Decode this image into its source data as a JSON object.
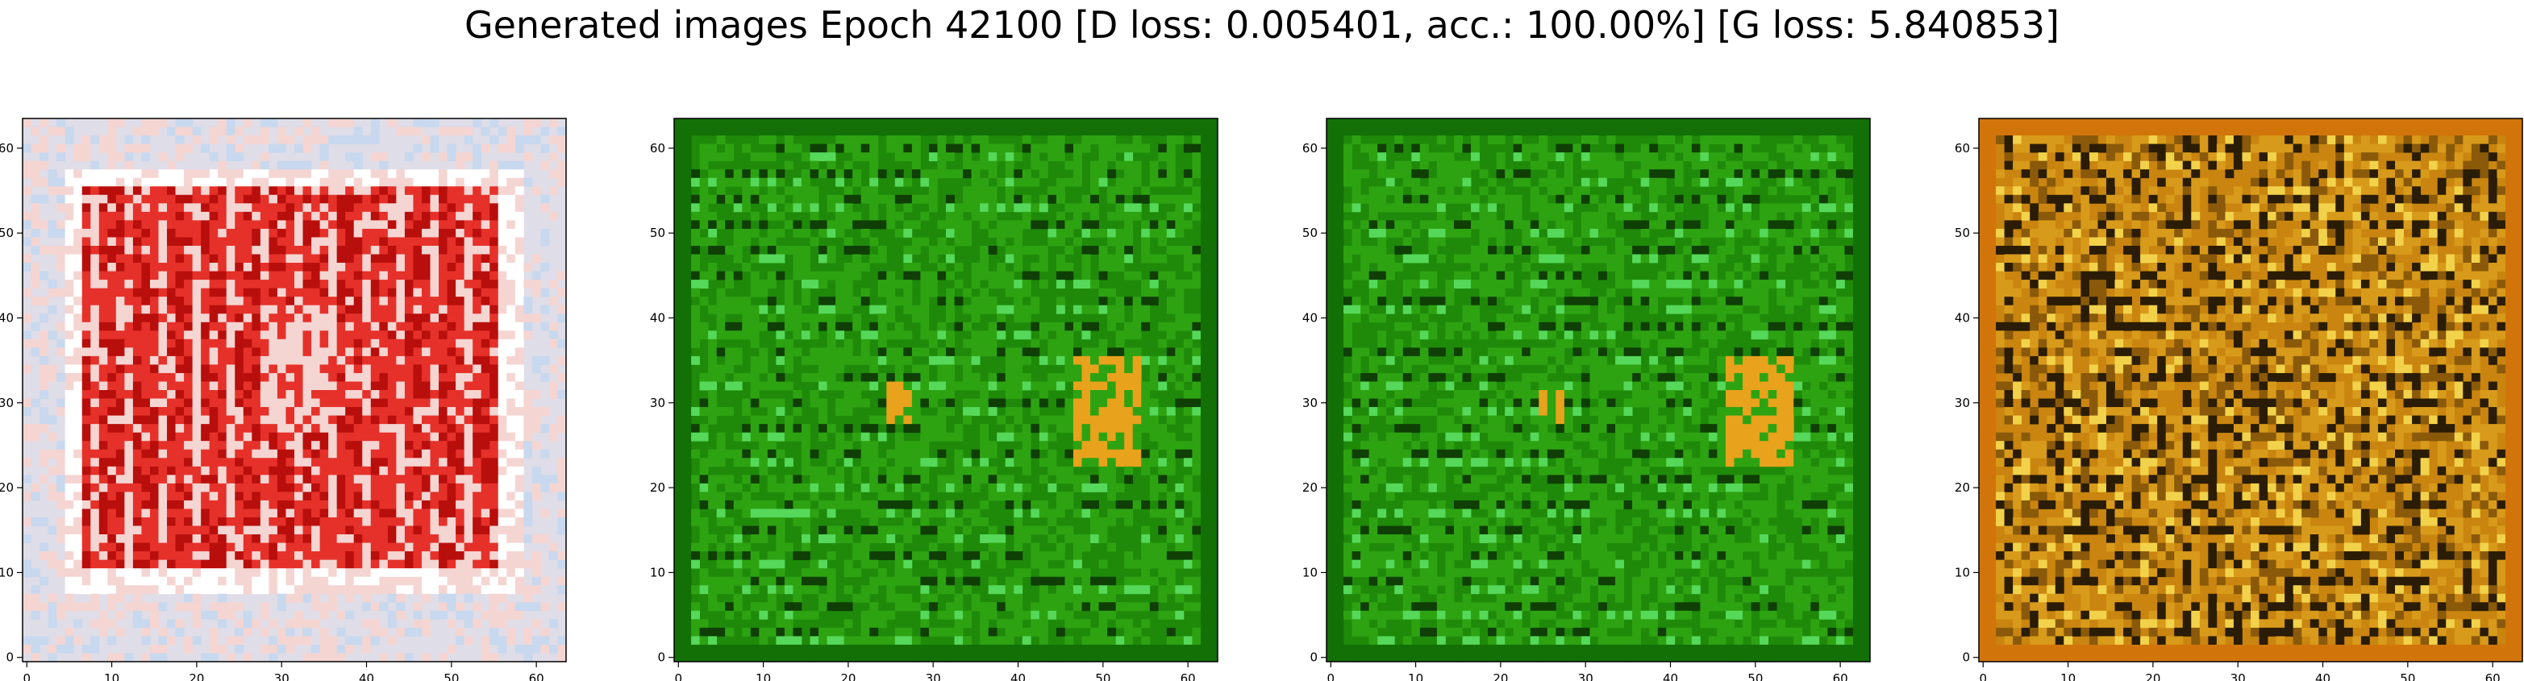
{
  "figure": {
    "title": "Generated images Epoch 42100 [D loss: 0.005401, acc.: 100.00%] [G loss: 5.840853]"
  },
  "chart_data": [
    {
      "type": "heatmap",
      "title": "",
      "xlabel": "",
      "ylabel": "",
      "x_ticks": [
        "0",
        "10",
        "20",
        "30",
        "40",
        "50",
        "60"
      ],
      "y_ticks": [
        "0",
        "10",
        "20",
        "30",
        "40",
        "50",
        "60"
      ],
      "xlim": [
        -0.5,
        63.5
      ],
      "ylim": [
        63.5,
        -0.5
      ],
      "grid": false,
      "palette": {
        "bg": "#dfdde8",
        "frame": "#ffffff",
        "main": "#e5312a",
        "dark": "#b80f0c",
        "light": "#f4d5d2",
        "accent": "#c8d8ee"
      }
    },
    {
      "type": "heatmap",
      "title": "",
      "xlabel": "",
      "ylabel": "",
      "x_ticks": [
        "0",
        "10",
        "20",
        "30",
        "40",
        "50",
        "60"
      ],
      "y_ticks": [
        "0",
        "10",
        "20",
        "30",
        "40",
        "50",
        "60"
      ],
      "xlim": [
        -0.5,
        63.5
      ],
      "ylim": [
        63.5,
        -0.5
      ],
      "grid": false,
      "palette": {
        "bg": "#1f8a0a",
        "frame": "#137006",
        "main": "#2ea312",
        "dark": "#0f3f05",
        "light": "#56d85a",
        "accent": "#e8a21c"
      }
    },
    {
      "type": "heatmap",
      "title": "",
      "xlabel": "",
      "ylabel": "",
      "x_ticks": [
        "0",
        "10",
        "20",
        "30",
        "40",
        "50",
        "60"
      ],
      "y_ticks": [
        "0",
        "10",
        "20",
        "30",
        "40",
        "50",
        "60"
      ],
      "xlim": [
        -0.5,
        63.5
      ],
      "ylim": [
        63.5,
        -0.5
      ],
      "grid": false,
      "palette": {
        "bg": "#1f8a0a",
        "frame": "#137006",
        "main": "#2ea312",
        "dark": "#0f3f05",
        "light": "#56d85a",
        "accent": "#e8a21c"
      }
    },
    {
      "type": "heatmap",
      "title": "",
      "xlabel": "",
      "ylabel": "",
      "x_ticks": [
        "0",
        "10",
        "20",
        "30",
        "40",
        "50",
        "60"
      ],
      "y_ticks": [
        "0",
        "10",
        "20",
        "30",
        "40",
        "50",
        "60"
      ],
      "xlim": [
        -0.5,
        63.5
      ],
      "ylim": [
        63.5,
        -0.5
      ],
      "grid": false,
      "palette": {
        "bg": "#c9850f",
        "frame": "#d1750a",
        "main": "#d89a1a",
        "dark": "#2a1c05",
        "light": "#f2d24a",
        "accent": "#8a5a0a"
      }
    }
  ]
}
